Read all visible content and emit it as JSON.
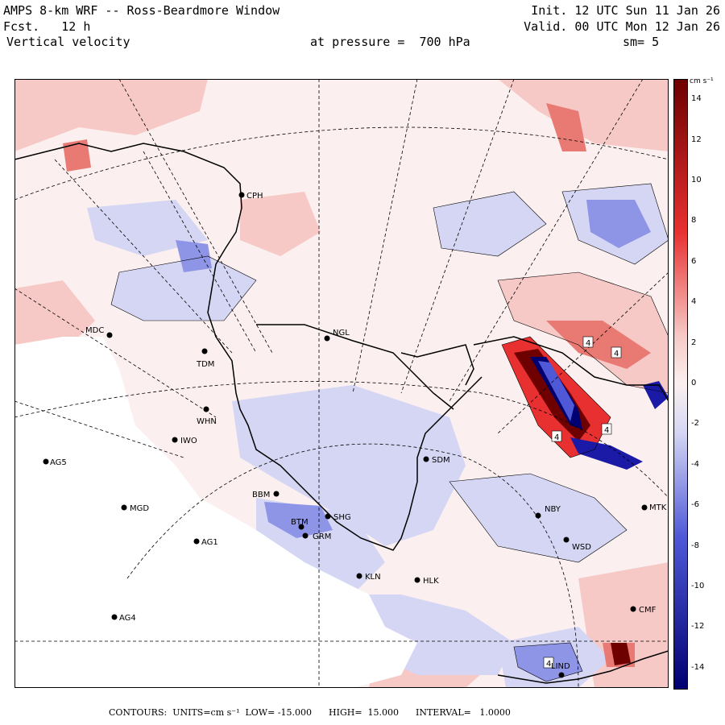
{
  "header": {
    "title": "AMPS 8-km WRF -- Ross-Beardmore Window",
    "fcst": "Fcst.   12 h",
    "field": "Vertical velocity",
    "pressure": "at pressure =  700 hPa",
    "init": "Init. 12 UTC Sun 11 Jan 26",
    "valid": "Valid. 00 UTC Mon 12 Jan 26",
    "smooth": "sm= 5"
  },
  "colorbar": {
    "unit": "cm s⁻¹",
    "ticks": [
      "14",
      "12",
      "10",
      "8",
      "6",
      "4",
      "2",
      "0",
      "-2",
      "-4",
      "-6",
      "-8",
      "-10",
      "-12",
      "-14"
    ],
    "range": [
      -15,
      15
    ],
    "colors": {
      "pos_dark": "#6e0000",
      "pos_mid": "#e83030",
      "pos_light": "#f6c9c6",
      "neutral": "#fbf0ef",
      "neg_light": "#d4d6f3",
      "neg_mid": "#4f59d8",
      "neg_dark": "#000070"
    }
  },
  "stations": [
    {
      "id": "CPH",
      "label": "CPH"
    },
    {
      "id": "MDC",
      "label": "MDC"
    },
    {
      "id": "TDM",
      "label": "TDM"
    },
    {
      "id": "NGL",
      "label": "NGL"
    },
    {
      "id": "WHN",
      "label": "WHN"
    },
    {
      "id": "IWO",
      "label": "IWO"
    },
    {
      "id": "AG5",
      "label": "AG5"
    },
    {
      "id": "SDM",
      "label": "SDM"
    },
    {
      "id": "BBM",
      "label": "BBM"
    },
    {
      "id": "MGD",
      "label": "MGD"
    },
    {
      "id": "SHG",
      "label": "SHG"
    },
    {
      "id": "BTM",
      "label": "BTM"
    },
    {
      "id": "GRM",
      "label": "GRM"
    },
    {
      "id": "AG1",
      "label": "AG1"
    },
    {
      "id": "NBY",
      "label": "NBY"
    },
    {
      "id": "MTK",
      "label": "MTK"
    },
    {
      "id": "WSD",
      "label": "WSD"
    },
    {
      "id": "KLN",
      "label": "KLN"
    },
    {
      "id": "HLK",
      "label": "HLK"
    },
    {
      "id": "AG4",
      "label": "AG4"
    },
    {
      "id": "CMF",
      "label": "CMF"
    },
    {
      "id": "LIND",
      "label": "LIND"
    }
  ],
  "contour_labels": [
    "4",
    "4",
    "4",
    "4",
    "4"
  ],
  "footer": "CONTOURS:  UNITS=cm s⁻¹  LOW= -15.000      HIGH=  15.000      INTERVAL=   1.0000"
}
